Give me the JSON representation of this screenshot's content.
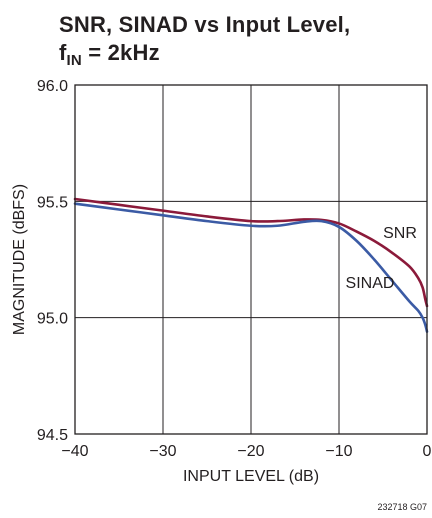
{
  "title": {
    "line1": "SNR, SINAD vs Input Level,",
    "f_prefix": "f",
    "f_sub": "IN",
    "f_suffix": " = 2kHz"
  },
  "figure_id": "232718 G07",
  "chart_data": {
    "type": "line",
    "title": "SNR, SINAD vs Input Level, fIN = 2kHz",
    "xlabel": "INPUT LEVEL (dB)",
    "ylabel": "MAGNITUDE (dBFS)",
    "xlim": [
      -40,
      0
    ],
    "ylim": [
      94.5,
      96.0
    ],
    "x_ticks": [
      -40,
      -30,
      -20,
      -10,
      0
    ],
    "x_tick_labels": [
      "−40",
      "−30",
      "−20",
      "−10",
      "0"
    ],
    "y_ticks": [
      94.5,
      95.0,
      95.5,
      96.0
    ],
    "y_tick_labels": [
      "94.5",
      "95.0",
      "95.5",
      "96.0"
    ],
    "grid": true,
    "series": [
      {
        "name": "SNR",
        "color": "#8b1a3a",
        "x": [
          -40,
          -35,
          -30,
          -25,
          -20,
          -17,
          -14,
          -12,
          -10,
          -8,
          -6,
          -4,
          -2,
          -1,
          -0.5,
          -0.2,
          0
        ],
        "y": [
          95.51,
          95.485,
          95.46,
          95.435,
          95.415,
          95.415,
          95.422,
          95.42,
          95.405,
          95.37,
          95.33,
          95.28,
          95.22,
          95.17,
          95.13,
          95.08,
          95.05
        ]
      },
      {
        "name": "SINAD",
        "color": "#3b5ba5",
        "x": [
          -40,
          -35,
          -30,
          -25,
          -20,
          -17,
          -14,
          -12,
          -10,
          -8,
          -6,
          -4,
          -2,
          -1,
          -0.5,
          -0.2,
          0
        ],
        "y": [
          95.49,
          95.465,
          95.44,
          95.415,
          95.395,
          95.395,
          95.412,
          95.415,
          95.39,
          95.33,
          95.25,
          95.16,
          95.07,
          95.03,
          95.0,
          94.97,
          94.94
        ]
      }
    ]
  }
}
